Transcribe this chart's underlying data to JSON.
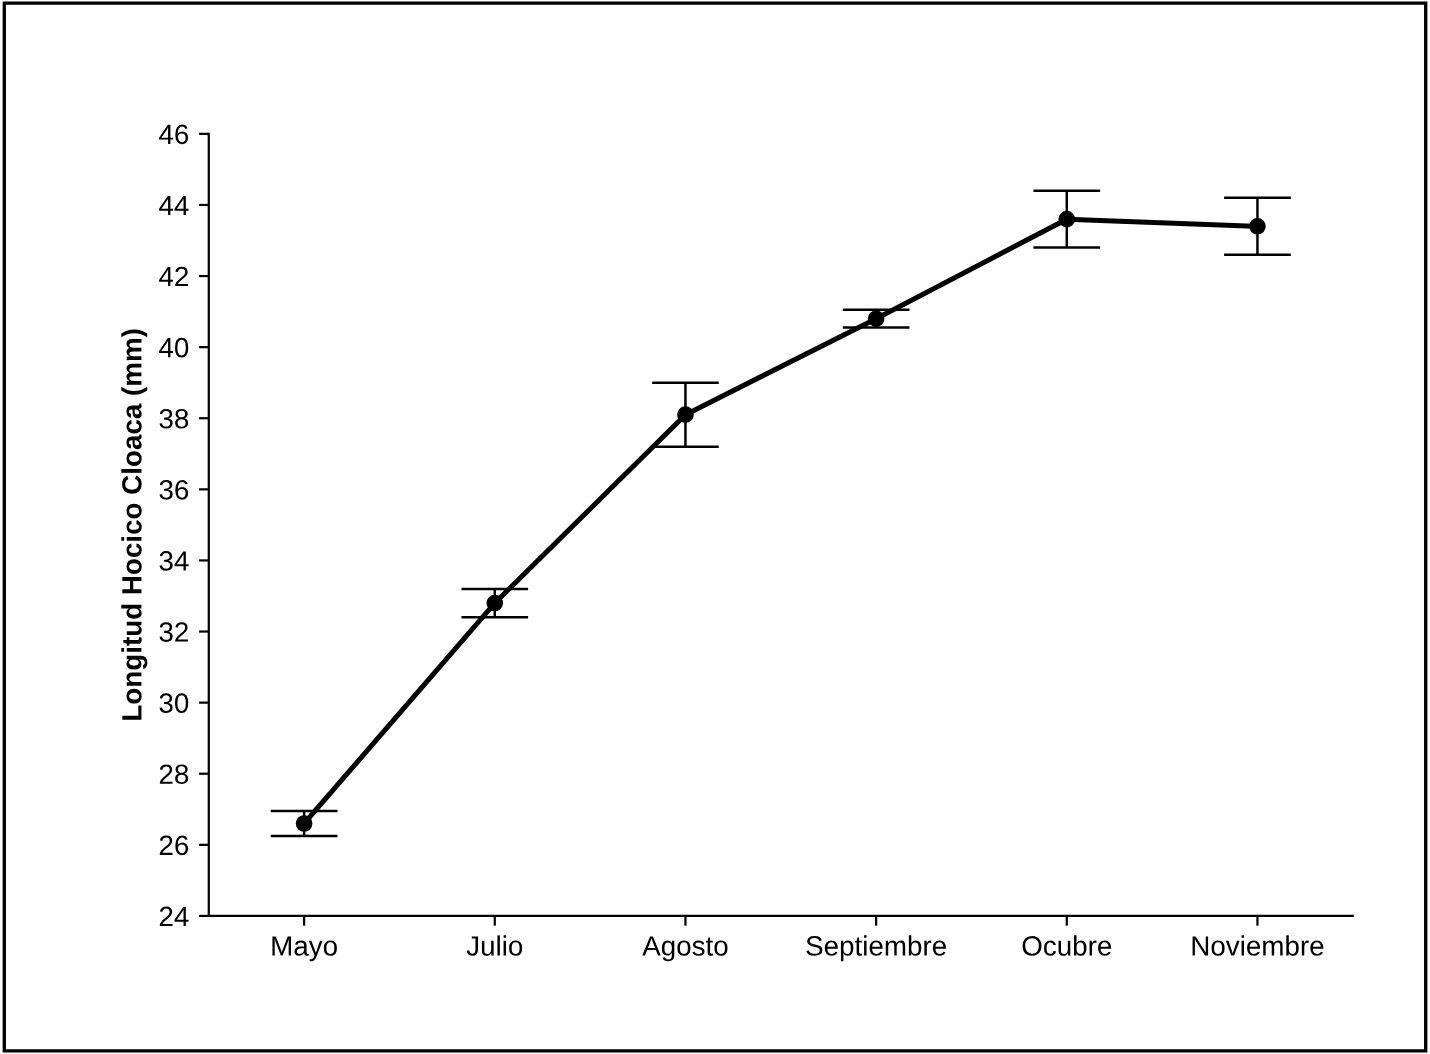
{
  "chart_data": {
    "type": "line",
    "ylabel": "Longitud Hocico Cloaca (mm)",
    "categories": [
      "Mayo",
      "Julio",
      "Agosto",
      "Septiembre",
      "Ocubre",
      "Noviembre"
    ],
    "series": [
      {
        "color": "#000000",
        "values": [
          26.6,
          32.8,
          38.1,
          40.8,
          43.6,
          43.4
        ],
        "errors": [
          0.35,
          0.4,
          0.9,
          0.25,
          0.8,
          0.8
        ]
      }
    ],
    "ylim": [
      24,
      46
    ],
    "yticks": [
      24,
      26,
      28,
      30,
      32,
      34,
      36,
      38,
      40,
      42,
      44,
      46
    ],
    "grid": false,
    "legend": false,
    "marker": "circle",
    "line_style": "solid"
  }
}
